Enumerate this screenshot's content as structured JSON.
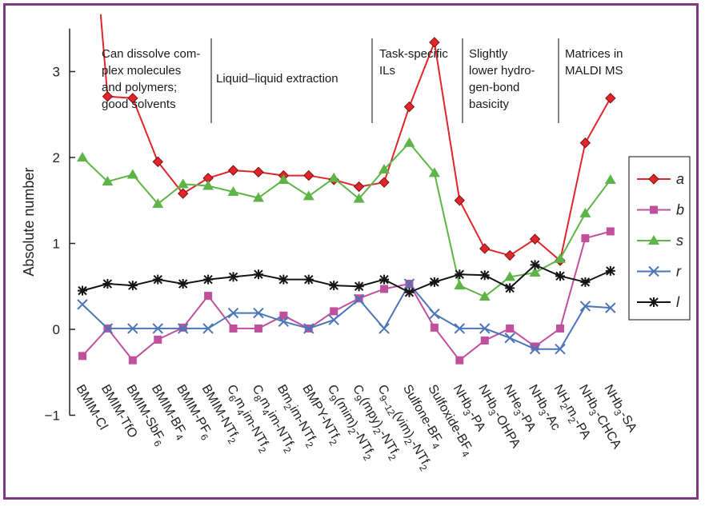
{
  "chart_data": {
    "type": "line",
    "title": "",
    "xlabel": "",
    "ylabel": "Absolute number",
    "ylim": [
      -1,
      3.5
    ],
    "yticks": [
      "3",
      "2",
      "1",
      "0",
      "−1"
    ],
    "categories": [
      "BMIM-Cl",
      "BMIM-TfO",
      "BMIM-SbF6",
      "BMIM-BF4",
      "BMIM-PF6",
      "BMIM-NTf2",
      "C6m4im-NTf2",
      "C8m4im-NTf2",
      "Bm2im-NTf2",
      "BMPY-NTf2",
      "C9(mim)2-NTf2",
      "C9(mpy)2-NTf2",
      "C9−12(vim)2-NTf2",
      "Sulfone-BF4",
      "Sulfoxide-BF4",
      "NHb3-PA",
      "NHb3-OHPA",
      "NHe3-PA",
      "NHb3-Ac",
      "NH2m2-PA",
      "NHb3-CHCA",
      "NHb3-SA"
    ],
    "category_labels": [
      {
        "base": "BMIM-Cl",
        "sub": "",
        "tail": ""
      },
      {
        "base": "BMIM-TfO",
        "sub": "",
        "tail": ""
      },
      {
        "base": "BMIM-SbF",
        "sub": "6",
        "tail": ""
      },
      {
        "base": "BMIM-BF",
        "sub": "4",
        "tail": ""
      },
      {
        "base": "BMIM-PF",
        "sub": "6",
        "tail": ""
      },
      {
        "base": "BMIM-NTf",
        "sub": "2",
        "tail": ""
      },
      {
        "base": "C",
        "sub": "6",
        "tail": "m",
        "sub2": "4",
        "tail2": "im-NTf",
        "sub3": "2"
      },
      {
        "base": "C",
        "sub": "8",
        "tail": "m",
        "sub2": "4",
        "tail2": "im-NTf",
        "sub3": "2"
      },
      {
        "base": "Bm",
        "sub": "2",
        "tail": "im-NTf",
        "sub2": "2"
      },
      {
        "base": "BMPY-NTf",
        "sub": "2",
        "tail": ""
      },
      {
        "base": "C",
        "sub": "9",
        "tail": "(mim)",
        "sub2": "2",
        "tail2": "-NTf",
        "sub3": "2"
      },
      {
        "base": "C",
        "sub": "9",
        "tail": "(mpy)",
        "sub2": "2",
        "tail2": "-NTf",
        "sub3": "2"
      },
      {
        "base": "C",
        "sub": "9−12",
        "tail": "(vim)",
        "sub2": "2",
        "tail2": "-NTf",
        "sub3": "2"
      },
      {
        "base": "Sulfone-BF",
        "sub": "4",
        "tail": ""
      },
      {
        "base": "Sulfoxide-BF",
        "sub": "4",
        "tail": ""
      },
      {
        "base": "NHb",
        "sub": "3",
        "tail": "-PA"
      },
      {
        "base": "NHb",
        "sub": "3",
        "tail": "-OHPA"
      },
      {
        "base": "NHe",
        "sub": "3",
        "tail": "-PA"
      },
      {
        "base": "NHb",
        "sub": "3",
        "tail": "-Ac"
      },
      {
        "base": "NH",
        "sub": "2",
        "tail": "m",
        "sub2": "2",
        "tail2": "-PA"
      },
      {
        "base": "NHb",
        "sub": "3",
        "tail": "-CHCA"
      },
      {
        "base": "NHb",
        "sub": "3",
        "tail": "-SA"
      }
    ],
    "series": [
      {
        "name": "a",
        "color": "#e0262b",
        "marker": "diamond",
        "lead_in": 6.2,
        "values": [
          null,
          2.71,
          2.69,
          1.95,
          1.58,
          1.76,
          1.85,
          1.83,
          1.79,
          1.79,
          1.74,
          1.66,
          1.71,
          2.59,
          3.34,
          1.5,
          0.94,
          0.86,
          1.05,
          0.8,
          2.17,
          2.69
        ]
      },
      {
        "name": "b",
        "color": "#c0509c",
        "marker": "square",
        "values": [
          -0.31,
          0.01,
          -0.36,
          -0.12,
          0.02,
          0.39,
          0.01,
          0.01,
          0.16,
          0.01,
          0.21,
          0.36,
          0.47,
          0.53,
          0.02,
          -0.36,
          -0.13,
          0.01,
          -0.2,
          0.01,
          1.06,
          1.14
        ]
      },
      {
        "name": "s",
        "color": "#5cb546",
        "marker": "triangle",
        "values": [
          2.0,
          1.72,
          1.8,
          1.46,
          1.69,
          1.67,
          1.6,
          1.53,
          1.74,
          1.55,
          1.76,
          1.52,
          1.86,
          2.17,
          1.82,
          0.51,
          0.38,
          0.61,
          0.66,
          0.82,
          1.35,
          1.74
        ]
      },
      {
        "name": "r",
        "color": "#4a75b8",
        "marker": "x",
        "values": [
          0.29,
          0.01,
          0.01,
          0.01,
          0.01,
          0.01,
          0.19,
          0.19,
          0.09,
          0.01,
          0.11,
          0.35,
          0.01,
          0.53,
          0.18,
          0.01,
          0.01,
          -0.1,
          -0.23,
          -0.23,
          0.27,
          0.25
        ]
      },
      {
        "name": "l",
        "color": "#141414",
        "marker": "star",
        "values": [
          0.45,
          0.53,
          0.51,
          0.58,
          0.53,
          0.58,
          0.61,
          0.64,
          0.58,
          0.58,
          0.51,
          0.5,
          0.58,
          0.43,
          0.55,
          0.64,
          0.63,
          0.48,
          0.75,
          0.62,
          0.55,
          0.68
        ]
      }
    ],
    "groups": [
      {
        "text": "Can dissolve com-\nplex molecules\nand polymers;\ngood solvents",
        "from": 1,
        "to": 5
      },
      {
        "text": "Liquid–liquid extraction",
        "from": 6,
        "to": 11
      },
      {
        "text": "Task-specific\nILs",
        "from": 12,
        "to": 14
      },
      {
        "text": "Slightly\nlower hydro-\ngen-bond\nbasicity",
        "from": 15,
        "to": 17
      },
      {
        "text": "Matrices in\nMALDI MS",
        "from": 18,
        "to": 21
      }
    ],
    "legend_position": "right",
    "grid": false
  }
}
